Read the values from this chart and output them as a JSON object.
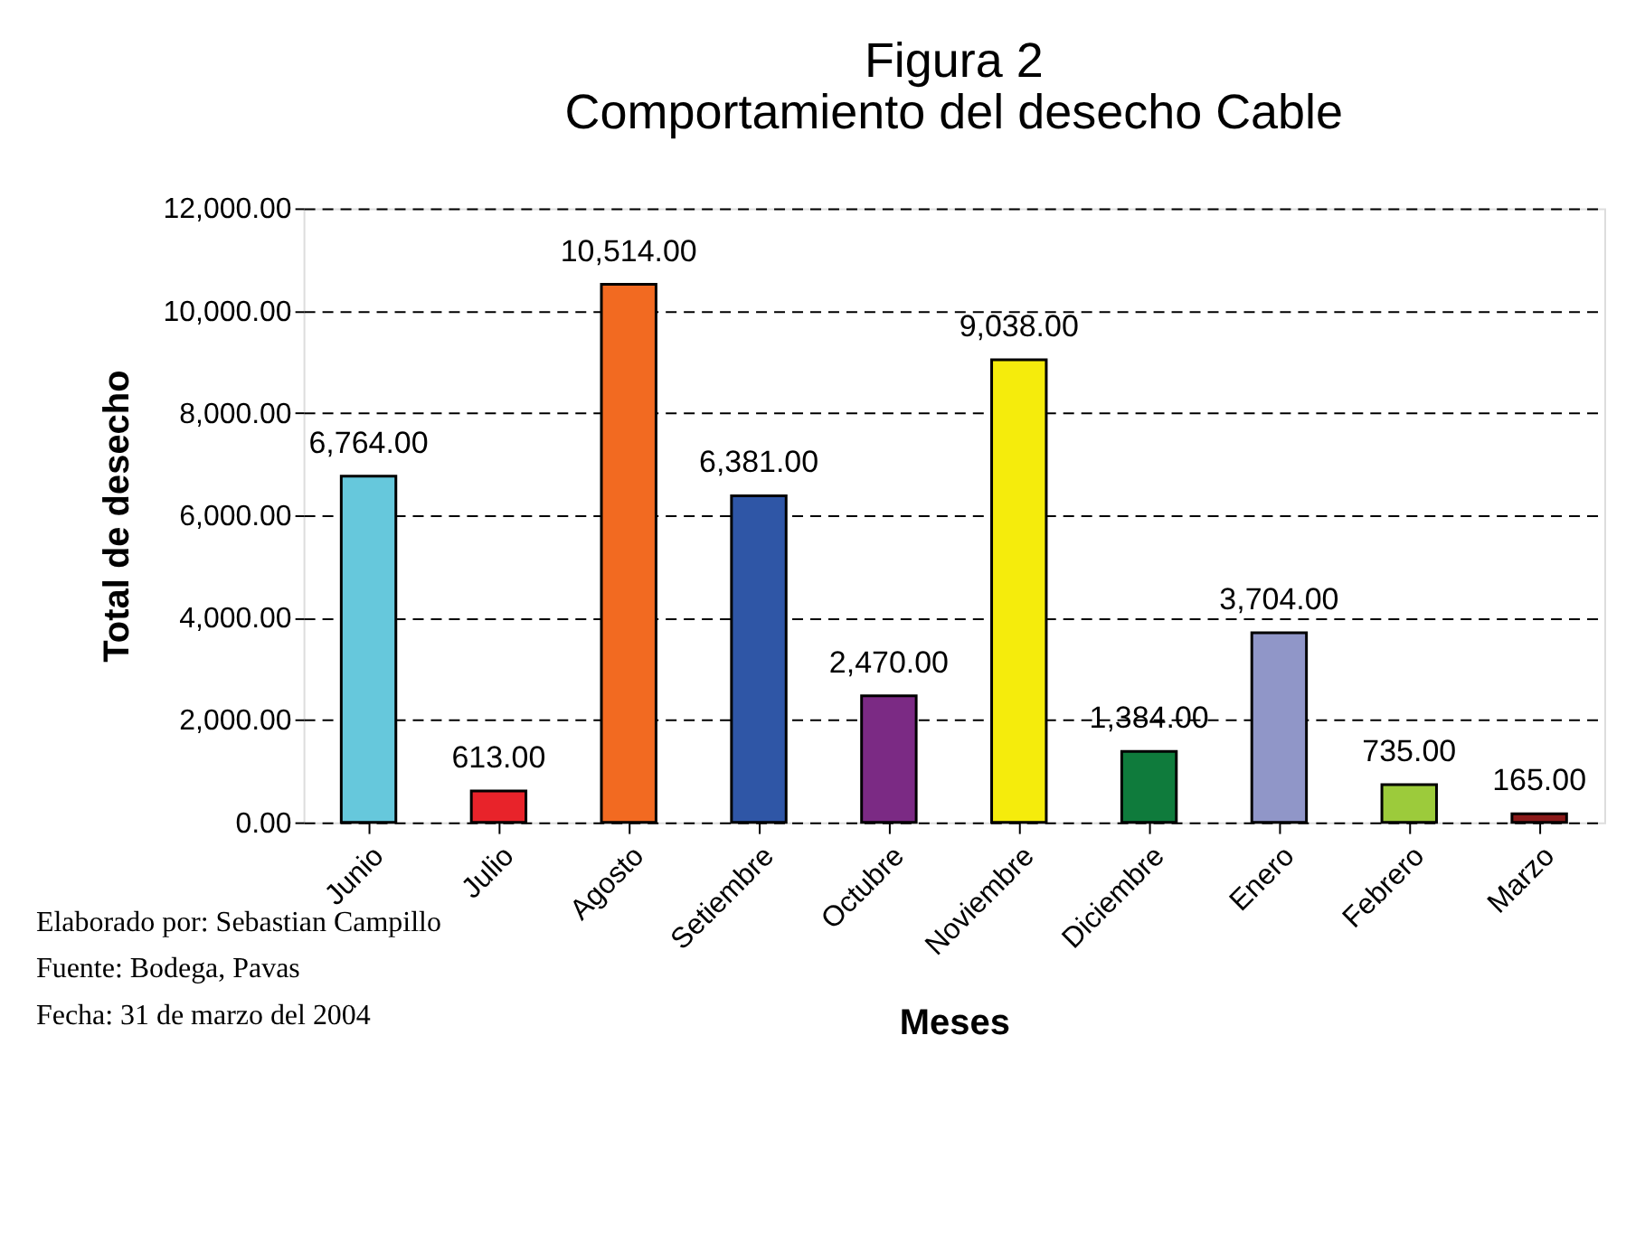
{
  "chart_data": {
    "type": "bar",
    "title": "Figura 2\nComportamiento del desecho Cable",
    "xlabel": "Meses",
    "ylabel": "Total de desecho",
    "categories": [
      "Junio",
      "Julio",
      "Agosto",
      "Setiembre",
      "Octubre",
      "Noviembre",
      "Diciembre",
      "Enero",
      "Febrero",
      "Marzo"
    ],
    "values": [
      6764,
      613,
      10514,
      6381,
      2470,
      9038,
      1384,
      3704,
      735,
      165
    ],
    "colors": [
      "#66c8dc",
      "#e8232a",
      "#f26a21",
      "#2f56a6",
      "#7b2a84",
      "#f5ec0c",
      "#0f7b3c",
      "#9096c8",
      "#9ccb3b",
      "#8b1a1a"
    ],
    "value_labels": [
      "6,764.00",
      "613.00",
      "10,514.00",
      "6,381.00",
      "2,470.00",
      "9,038.00",
      "1,384.00",
      "3,704.00",
      "735.00",
      "165.00"
    ],
    "ylim": [
      0,
      12000
    ],
    "yticks": [
      {
        "value": 0,
        "label": "0.00"
      },
      {
        "value": 2000,
        "label": "2,000.00"
      },
      {
        "value": 4000,
        "label": "4,000.00"
      },
      {
        "value": 6000,
        "label": "6,000.00"
      },
      {
        "value": 8000,
        "label": "8,000.00"
      },
      {
        "value": 10000,
        "label": "10,000.00"
      },
      {
        "value": 12000,
        "label": "12,000.00"
      }
    ],
    "grid": "y",
    "annotations": [
      "Elaborado por: Sebastian Campillo",
      "Fuente: Bodega, Pavas",
      "Fecha: 31 de marzo del 2004"
    ]
  }
}
